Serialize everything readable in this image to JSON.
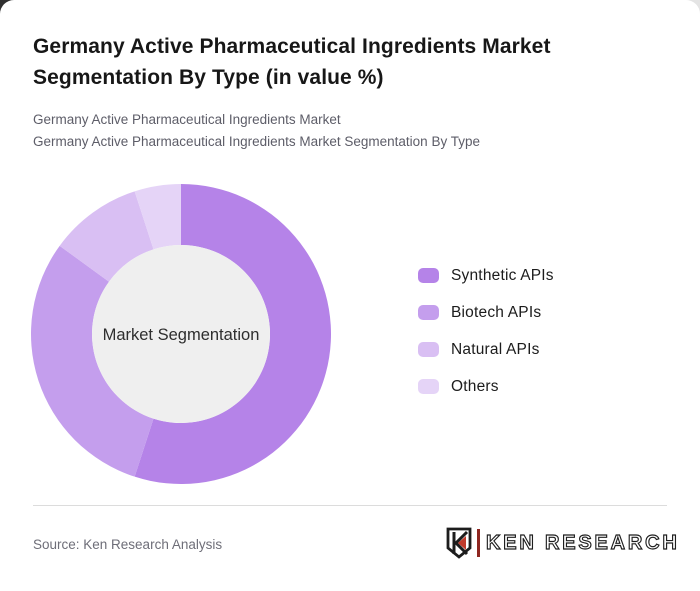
{
  "page": {
    "title_line1": "Germany Active Pharmaceutical Ingredients Market",
    "title_line2": "Segmentation By Type (in value %)",
    "subtitle_line1": "Germany Active Pharmaceutical Ingredients Market",
    "subtitle_line2": "Germany Active Pharmaceutical Ingredients Market Segmentation By Type"
  },
  "chart_data": {
    "type": "pie",
    "donut": true,
    "title": "Germany Active Pharmaceutical Ingredients Market Segmentation By Type (in value %)",
    "center_label": "Market Segmentation",
    "unit": "value %",
    "start_angle_deg": 0,
    "direction": "clockwise",
    "legend_position": "right",
    "inner_circle_color": "#efefef",
    "series": [
      {
        "name": "Synthetic APIs",
        "value": 55,
        "color": "#b583e8"
      },
      {
        "name": "Biotech APIs",
        "value": 30,
        "color": "#c49eed"
      },
      {
        "name": "Natural APIs",
        "value": 10,
        "color": "#d9bff3"
      },
      {
        "name": "Others",
        "value": 5,
        "color": "#e5d4f7"
      }
    ]
  },
  "footer": {
    "source": "Source: Ken Research Analysis",
    "brand": "KEN RESEARCH"
  }
}
